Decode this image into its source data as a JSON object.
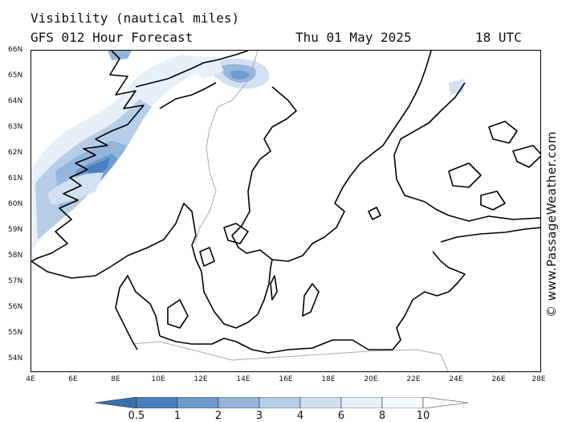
{
  "header": {
    "title": "Visibility (nautical miles)",
    "model_line": "GFS 012 Hour Forecast",
    "date": "Thu 01 May 2025",
    "time": "18 UTC"
  },
  "map": {
    "lat_labels": [
      "66N",
      "65N",
      "64N",
      "63N",
      "62N",
      "61N",
      "60N",
      "59N",
      "58N",
      "57N",
      "56N",
      "55N",
      "54N"
    ],
    "lon_labels": [
      "4E",
      "6E",
      "8E",
      "10E",
      "12E",
      "14E",
      "16E",
      "18E",
      "20E",
      "22E",
      "24E",
      "26E",
      "28E"
    ],
    "credit": "© www.PassageWeather.com",
    "colors": {
      "land_outline": "#000000",
      "border": "#aaaaaa"
    }
  },
  "legend": {
    "labels": [
      "0.5",
      "1",
      "2",
      "3",
      "4",
      "6",
      "8",
      "10"
    ],
    "colors": [
      "#3a6fb0",
      "#4a80bf",
      "#6e9bcd",
      "#95b6db",
      "#b6cde7",
      "#d2e0f1",
      "#e7eff8",
      "#f6f9fd",
      "#ffffff"
    ]
  }
}
